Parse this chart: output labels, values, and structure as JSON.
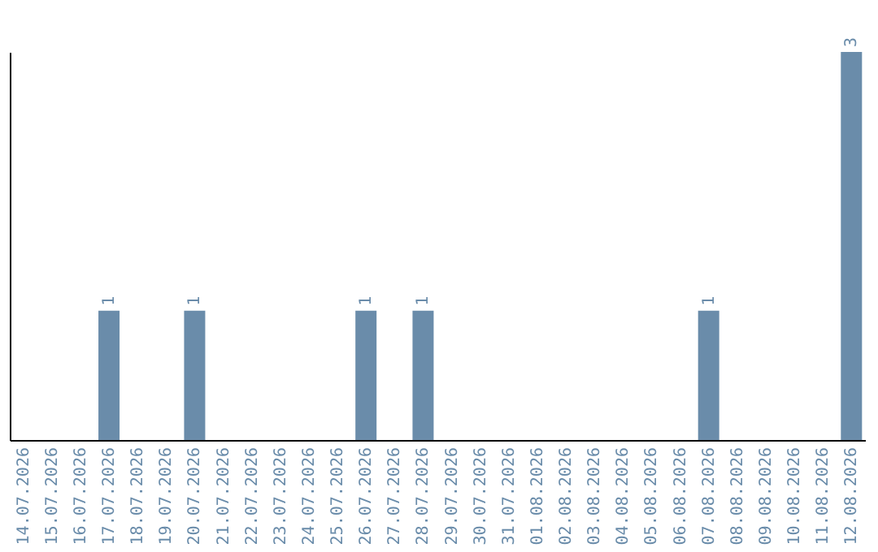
{
  "chart_data": {
    "type": "bar",
    "categories": [
      "14.07.2026",
      "15.07.2026",
      "16.07.2026",
      "17.07.2026",
      "18.07.2026",
      "19.07.2026",
      "20.07.2026",
      "21.07.2026",
      "22.07.2026",
      "23.07.2026",
      "24.07.2026",
      "25.07.2026",
      "26.07.2026",
      "27.07.2026",
      "28.07.2026",
      "29.07.2026",
      "30.07.2026",
      "31.07.2026",
      "01.08.2026",
      "02.08.2026",
      "03.08.2026",
      "04.08.2026",
      "05.08.2026",
      "06.08.2026",
      "07.08.2026",
      "08.08.2026",
      "09.08.2026",
      "10.08.2026",
      "11.08.2026",
      "12.08.2026"
    ],
    "values": [
      0,
      0,
      0,
      1,
      0,
      0,
      1,
      0,
      0,
      0,
      0,
      0,
      1,
      0,
      1,
      0,
      0,
      0,
      0,
      0,
      0,
      0,
      0,
      0,
      1,
      0,
      0,
      0,
      0,
      3
    ],
    "value_labels": [
      null,
      null,
      null,
      "1",
      null,
      null,
      "1",
      null,
      null,
      null,
      null,
      null,
      "1",
      null,
      "1",
      null,
      null,
      null,
      null,
      null,
      null,
      null,
      null,
      null,
      "1",
      null,
      null,
      null,
      null,
      "3"
    ],
    "color": "#6a8caa",
    "grid": false
  }
}
